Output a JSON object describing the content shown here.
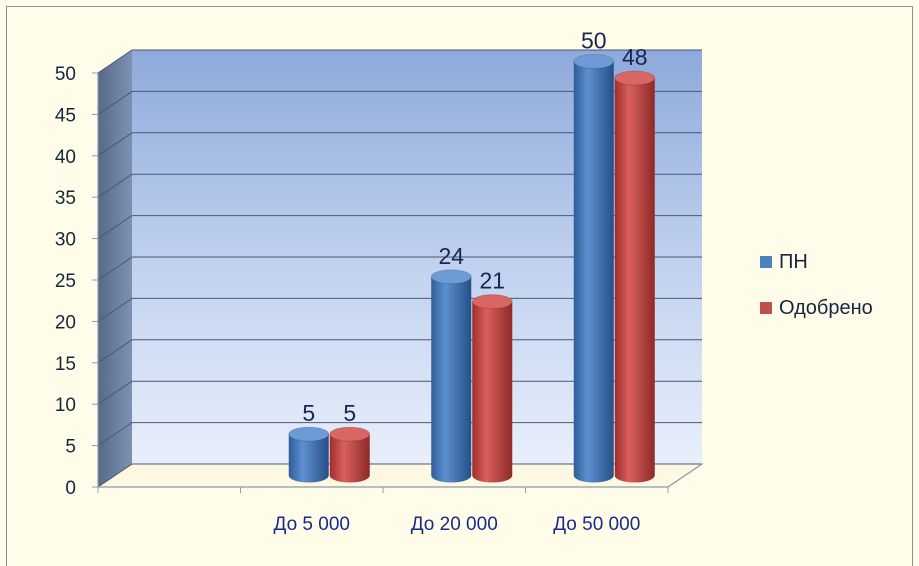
{
  "chart_data": {
    "type": "bar",
    "categories": [
      "",
      "До 5 000",
      "До 20 000",
      "До 50 000"
    ],
    "series": [
      {
        "name": "ПН",
        "values": [
          null,
          5,
          24,
          50
        ],
        "color": "#4f81bd"
      },
      {
        "name": "Одобрено",
        "values": [
          null,
          5,
          21,
          48
        ],
        "color": "#c0504d"
      }
    ],
    "ylim": [
      0,
      50
    ],
    "yticks": [
      "0",
      "5",
      "10",
      "15",
      "20",
      "25",
      "30",
      "35",
      "40",
      "45",
      "50"
    ],
    "grid": true,
    "legend": "right",
    "style": "3d-cylinder",
    "title": "",
    "xlabel": "",
    "ylabel": ""
  }
}
